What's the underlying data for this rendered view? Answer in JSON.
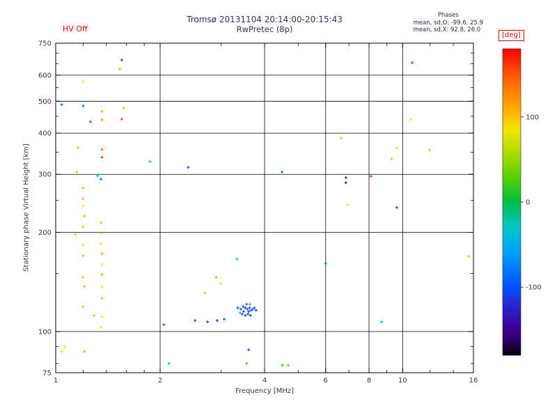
{
  "header": {
    "hv_status": "HV Off",
    "title_line1": "Tromsø 20131104 20:14:00-20:15:43",
    "title_line2": "RwPretec (8p)",
    "stats_title": "Phases",
    "stats_line_o": "mean, sd,O: -99.6, 25.9",
    "stats_line_x": "mean, sd,X:  92.8, 26.0"
  },
  "chart_data": {
    "type": "scatter",
    "title": "Tromsø 20131104 20:14:00-20:15:43 RwPretec (8p)",
    "xlabel": "Frequency [MHz]",
    "ylabel": "Stationary phase Virtual Height [km]",
    "x_scale": "log",
    "y_scale": "log",
    "xlim": [
      1,
      16
    ],
    "ylim": [
      75,
      750
    ],
    "grid": "on",
    "x_ticks_labeled": [
      1,
      2,
      4,
      6,
      8,
      10,
      16
    ],
    "x_minor_ticks": [
      1.2,
      1.4,
      1.6,
      1.8,
      3,
      5,
      7,
      9,
      12,
      14
    ],
    "x_gridlines": [
      2,
      4,
      6,
      8,
      10
    ],
    "y_ticks_labeled": [
      750,
      600,
      500,
      400,
      300,
      200,
      100,
      75
    ],
    "y_minor_ticks": [
      80,
      90,
      150,
      250,
      350,
      450,
      550,
      650,
      700
    ],
    "y_gridlines": [
      100,
      200,
      300,
      400,
      500,
      600
    ],
    "colorbar": {
      "label": "[deg]",
      "range": [
        -180,
        180
      ],
      "tick_labels": [
        100,
        0,
        -100
      ],
      "stops": [
        [
          -180,
          "#0a0014"
        ],
        [
          -150,
          "#3c0096"
        ],
        [
          -120,
          "#2828d2"
        ],
        [
          -100,
          "#0050ff"
        ],
        [
          -60,
          "#00a0ff"
        ],
        [
          -30,
          "#00c8c8"
        ],
        [
          0,
          "#00be46"
        ],
        [
          30,
          "#5ad200"
        ],
        [
          60,
          "#b4dc00"
        ],
        [
          85,
          "#f0e600"
        ],
        [
          105,
          "#ffb400"
        ],
        [
          135,
          "#ff7800"
        ],
        [
          160,
          "#ff3c00"
        ],
        [
          180,
          "#ff0000"
        ]
      ]
    },
    "points_format": [
      "frequency_MHz",
      "virtual_height_km",
      "phase_deg"
    ],
    "points": [
      [
        1.55,
        667,
        -110
      ],
      [
        1.53,
        626,
        110
      ],
      [
        10.65,
        654,
        170
      ],
      [
        1.2,
        573,
        85
      ],
      [
        1.04,
        488,
        -90
      ],
      [
        1.2,
        484,
        -85
      ],
      [
        1.57,
        477,
        100
      ],
      [
        1.36,
        465,
        110
      ],
      [
        1.55,
        441,
        160
      ],
      [
        1.36,
        439,
        120
      ],
      [
        1.26,
        433,
        -90
      ],
      [
        10.55,
        440,
        85
      ],
      [
        1.16,
        361,
        110
      ],
      [
        1.36,
        357,
        150
      ],
      [
        1.36,
        338,
        165
      ],
      [
        1.87,
        328,
        10
      ],
      [
        9.3,
        334,
        100
      ],
      [
        9.6,
        360,
        90
      ],
      [
        11.95,
        356,
        110
      ],
      [
        6.65,
        387,
        65
      ],
      [
        2.41,
        315,
        -95
      ],
      [
        1.15,
        305,
        105
      ],
      [
        1.32,
        297,
        -40
      ],
      [
        1.35,
        290,
        -90
      ],
      [
        4.49,
        305,
        -85
      ],
      [
        6.86,
        293,
        -130
      ],
      [
        6.86,
        283,
        -140
      ],
      [
        8.1,
        296,
        165
      ],
      [
        6.94,
        242,
        95
      ],
      [
        9.62,
        238,
        -115
      ],
      [
        1.2,
        273,
        105
      ],
      [
        1.2,
        253,
        100
      ],
      [
        1.2,
        241,
        85
      ],
      [
        1.21,
        224,
        110
      ],
      [
        1.2,
        208,
        100
      ],
      [
        1.14,
        197,
        105
      ],
      [
        1.2,
        183,
        85
      ],
      [
        1.2,
        170,
        110
      ],
      [
        1.2,
        146,
        100
      ],
      [
        1.21,
        137,
        110
      ],
      [
        1.2,
        119,
        100
      ],
      [
        1.35,
        214,
        105
      ],
      [
        1.35,
        199,
        100
      ],
      [
        1.35,
        185,
        80
      ],
      [
        1.36,
        172,
        110
      ],
      [
        1.36,
        160,
        85
      ],
      [
        1.36,
        149,
        105
      ],
      [
        1.36,
        137,
        80
      ],
      [
        1.36,
        126,
        100
      ],
      [
        1.36,
        111,
        90
      ],
      [
        1.35,
        103,
        80
      ],
      [
        1.29,
        112,
        105
      ],
      [
        3.33,
        166,
        -45
      ],
      [
        6.0,
        161,
        -90
      ],
      [
        15.5,
        169,
        100
      ],
      [
        2.9,
        146,
        40
      ],
      [
        2.99,
        140,
        75
      ],
      [
        2.69,
        131,
        100
      ],
      [
        3.35,
        118,
        -100
      ],
      [
        3.42,
        117,
        -110
      ],
      [
        3.47,
        119,
        -105
      ],
      [
        3.52,
        118,
        -120
      ],
      [
        3.57,
        117,
        -95
      ],
      [
        3.62,
        118,
        -110
      ],
      [
        3.55,
        121,
        -100
      ],
      [
        3.48,
        115,
        -115
      ],
      [
        3.6,
        115,
        -125
      ],
      [
        3.66,
        116,
        -105
      ],
      [
        3.7,
        117,
        -90
      ],
      [
        3.45,
        113,
        -110
      ],
      [
        3.52,
        112,
        -120
      ],
      [
        3.58,
        113,
        -100
      ],
      [
        3.64,
        112,
        -115
      ],
      [
        3.4,
        114,
        -45
      ],
      [
        3.63,
        121,
        -15
      ],
      [
        3.74,
        118,
        -95
      ],
      [
        3.78,
        116,
        -105
      ],
      [
        2.05,
        105,
        -90
      ],
      [
        2.52,
        108,
        -100
      ],
      [
        2.74,
        107,
        -120
      ],
      [
        2.92,
        108,
        -110
      ],
      [
        3.06,
        109,
        -105
      ],
      [
        8.7,
        107,
        -50
      ],
      [
        1.06,
        90,
        85
      ],
      [
        1.04,
        87,
        95
      ],
      [
        1.21,
        87,
        110
      ],
      [
        2.12,
        80,
        -45
      ],
      [
        3.55,
        80,
        20
      ],
      [
        4.5,
        79,
        10
      ],
      [
        4.68,
        79,
        30
      ],
      [
        3.6,
        88,
        -105
      ]
    ]
  }
}
